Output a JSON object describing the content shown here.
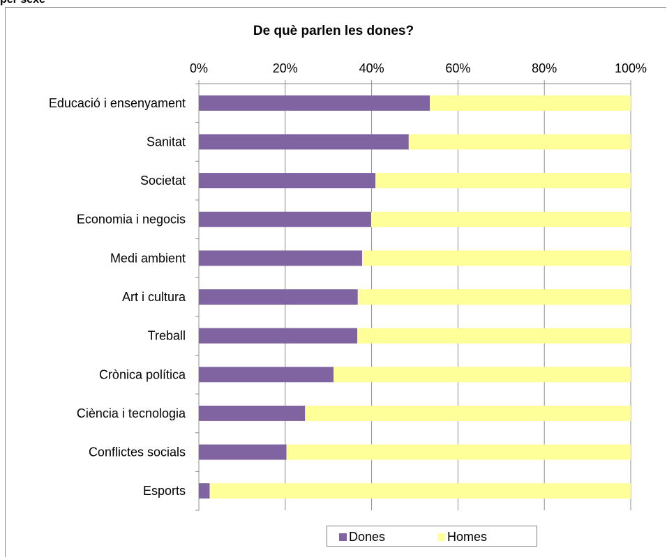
{
  "header_cut_text": "per sexe",
  "chart_data": {
    "type": "bar",
    "orientation": "horizontal",
    "stacked": "percent",
    "title": "De què parlen les dones?",
    "categories": [
      "Educació i ensenyament",
      "Sanitat",
      "Societat",
      "Economia i negocis",
      "Medi ambient",
      "Art i cultura",
      "Treball",
      "Crònica política",
      "Ciència i tecnologia",
      "Conflictes socials",
      "Esports"
    ],
    "series": [
      {
        "name": "Dones",
        "color": "#8064a2",
        "values": [
          53.5,
          48.6,
          40.9,
          39.9,
          37.8,
          36.8,
          36.7,
          31.2,
          24.6,
          20.3,
          2.5
        ]
      },
      {
        "name": "Homes",
        "color": "#ffff99",
        "values": [
          46.5,
          51.4,
          59.1,
          60.1,
          62.2,
          63.2,
          63.3,
          68.8,
          75.4,
          79.7,
          97.5
        ]
      }
    ],
    "x_ticks": [
      "0%",
      "20%",
      "40%",
      "60%",
      "80%",
      "100%"
    ],
    "x_range": [
      0,
      100
    ],
    "x_axis_position": "top",
    "grid": true,
    "legend_position": "bottom"
  }
}
